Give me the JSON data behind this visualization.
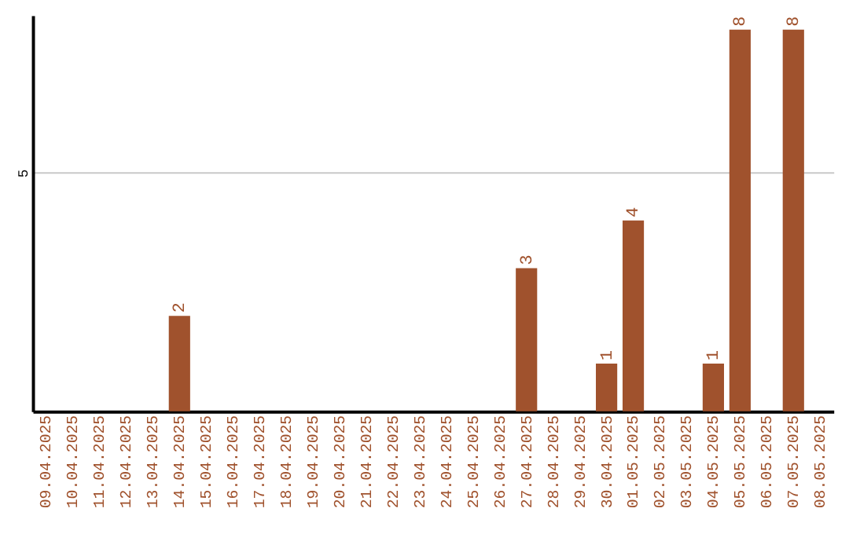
{
  "chart_data": {
    "type": "bar",
    "categories": [
      "09.04.2025",
      "10.04.2025",
      "11.04.2025",
      "12.04.2025",
      "13.04.2025",
      "14.04.2025",
      "15.04.2025",
      "16.04.2025",
      "17.04.2025",
      "18.04.2025",
      "19.04.2025",
      "20.04.2025",
      "21.04.2025",
      "22.04.2025",
      "23.04.2025",
      "24.04.2025",
      "25.04.2025",
      "26.04.2025",
      "27.04.2025",
      "28.04.2025",
      "29.04.2025",
      "30.04.2025",
      "01.05.2025",
      "02.05.2025",
      "03.05.2025",
      "04.05.2025",
      "05.05.2025",
      "06.05.2025",
      "07.05.2025",
      "08.05.2025"
    ],
    "values": [
      0,
      0,
      0,
      0,
      0,
      2,
      0,
      0,
      0,
      0,
      0,
      0,
      0,
      0,
      0,
      0,
      0,
      0,
      3,
      0,
      0,
      1,
      4,
      0,
      0,
      1,
      8,
      0,
      8,
      0
    ],
    "value_labels": [
      null,
      null,
      null,
      null,
      null,
      "2",
      null,
      null,
      null,
      null,
      null,
      null,
      null,
      null,
      null,
      null,
      null,
      null,
      "3",
      null,
      null,
      "1",
      "4",
      null,
      null,
      "1",
      "8",
      null,
      "8",
      null
    ],
    "color": "#a0522d",
    "ylim": [
      0,
      8.3
    ],
    "yticks": [
      5
    ],
    "grid": "y"
  }
}
